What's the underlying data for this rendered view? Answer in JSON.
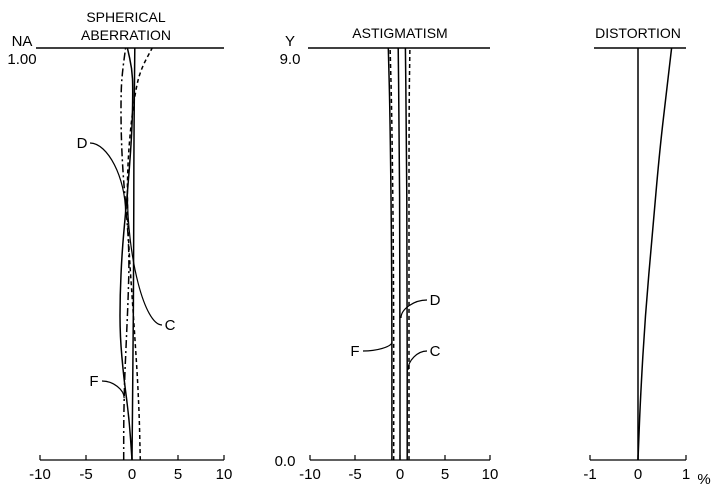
{
  "chart_data": [
    {
      "type": "line",
      "title_lines": [
        "SPHERICAL",
        "ABERRATION"
      ],
      "ylabel": "NA",
      "y_top_label": "1.00",
      "xlim": [
        -10,
        10
      ],
      "xticks": [
        "-10",
        "-5",
        "0",
        "5",
        "10"
      ],
      "ylim": [
        0,
        1
      ],
      "series": [
        {
          "name": "D",
          "style": "solid",
          "x": [
            0,
            -0.3,
            -0.9,
            -1.3,
            -1.3,
            -1.1,
            -0.7,
            -0.3,
            0,
            0.1,
            0,
            -0.5
          ],
          "y": [
            0,
            0.1,
            0.2,
            0.3,
            0.4,
            0.5,
            0.6,
            0.7,
            0.8,
            0.9,
            0.95,
            1.0
          ]
        },
        {
          "name": "C",
          "style": "dashed",
          "x": [
            0.9,
            0.8,
            0.6,
            0.3,
            0.0,
            -0.3,
            -0.5,
            -0.5,
            -0.2,
            0.4,
            1.0,
            2.2
          ],
          "y": [
            0,
            0.1,
            0.2,
            0.3,
            0.4,
            0.5,
            0.6,
            0.7,
            0.8,
            0.9,
            0.95,
            1.0
          ]
        },
        {
          "name": "F",
          "style": "dashdot",
          "x": [
            -0.9,
            -0.9,
            -0.8,
            -0.6,
            -0.4,
            -0.3,
            -0.6,
            -1.0,
            -1.2,
            -1.2,
            -1.0,
            -0.7
          ],
          "y": [
            0,
            0.1,
            0.2,
            0.3,
            0.4,
            0.5,
            0.6,
            0.7,
            0.8,
            0.9,
            0.95,
            1.0
          ]
        },
        {
          "name": "",
          "style": "solid",
          "x": [
            0,
            0.1,
            0.2,
            0.2,
            0.3
          ],
          "y": [
            0,
            0.25,
            0.5,
            0.75,
            1.0
          ]
        }
      ],
      "annotations": [
        {
          "text": "D",
          "series": "D"
        },
        {
          "text": "C",
          "series": "C"
        },
        {
          "text": "F",
          "series": "F"
        }
      ]
    },
    {
      "type": "line",
      "title": "ASTIGMATISM",
      "ylabel": "Y",
      "y_top_label": "9.0",
      "y_bottom_label": "0.0",
      "xlim": [
        -10,
        10
      ],
      "xticks": [
        "-10",
        "-5",
        "0",
        "5",
        "10"
      ],
      "ylim": [
        0,
        9
      ],
      "series": [
        {
          "name": "",
          "style": "solid",
          "x": [
            -0.9,
            -0.9,
            -1.1,
            -1.3
          ],
          "y": [
            0,
            4,
            7.5,
            9
          ]
        },
        {
          "name": "",
          "style": "dashed",
          "x": [
            -0.7,
            -0.7,
            -0.9,
            -1.1
          ],
          "y": [
            0,
            4,
            7.5,
            9
          ]
        },
        {
          "name": "",
          "style": "solid",
          "x": [
            0,
            0,
            -0.1,
            -0.2
          ],
          "y": [
            0,
            4,
            7.5,
            9
          ]
        },
        {
          "name": "",
          "style": "solid",
          "x": [
            0.8,
            0.8,
            0.7,
            0.6
          ],
          "y": [
            0,
            4,
            7.5,
            9
          ]
        },
        {
          "name": "",
          "style": "dashed",
          "x": [
            1.0,
            1.0,
            1.0,
            1.1
          ],
          "y": [
            0,
            4,
            7.5,
            9
          ]
        }
      ],
      "annotations": [
        {
          "text": "D"
        },
        {
          "text": "F"
        },
        {
          "text": "C"
        }
      ]
    },
    {
      "type": "line",
      "title": "DISTORTION",
      "xlim": [
        -1,
        1
      ],
      "xticks": [
        "-1",
        "0",
        "1"
      ],
      "xunit": "%",
      "ylim": [
        0,
        1
      ],
      "series": [
        {
          "name": "",
          "style": "solid",
          "x": [
            0,
            0
          ],
          "y": [
            0,
            1
          ]
        },
        {
          "name": "",
          "style": "solid",
          "x": [
            0,
            0.05,
            0.15,
            0.3,
            0.45,
            0.6,
            0.7
          ],
          "y": [
            0,
            0.15,
            0.35,
            0.55,
            0.75,
            0.9,
            1.0
          ]
        }
      ]
    }
  ]
}
